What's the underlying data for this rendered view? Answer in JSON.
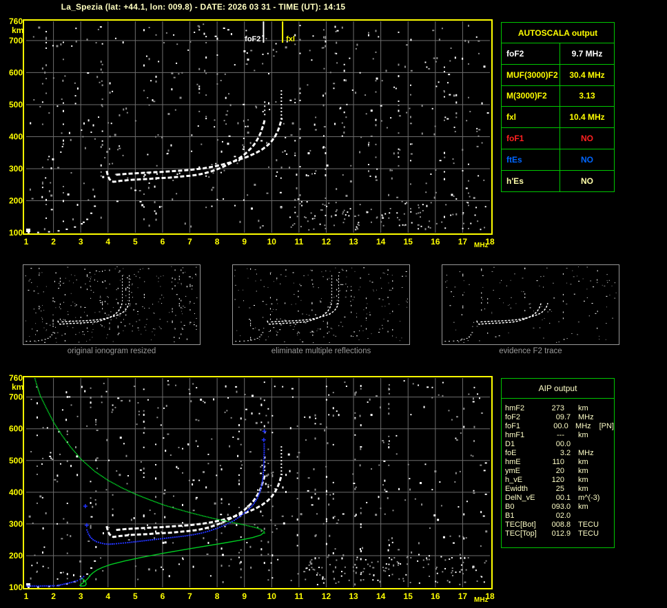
{
  "title": "La_Spezia (lat: +44.1, lon: 009.8) - DATE: 2026 03 31 - TIME (UT): 14:15",
  "colors": {
    "background": "#000000",
    "axis_yellow": "#ffff00",
    "pale_yellow": "#ffffc8",
    "grid_gray": "#6e6e6e",
    "table_border_green": "#00c800",
    "trace_white": "#ffffff",
    "computed_blue": "#2233ff",
    "profile_green": "#00cc22",
    "noise_gray": "#8f8f8f",
    "caption_gray": "#9a9a9a",
    "fof1_red": "#ff2020",
    "ftes_blue": "#0066ff",
    "hes_yellow": "#ffffa8"
  },
  "autoscala_table": {
    "title": "AUTOSCALA output",
    "rows": [
      {
        "label": "foF2",
        "value": "9.7 MHz",
        "color": "#ffffff"
      },
      {
        "label": "MUF(3000)F2",
        "value": "30.4 MHz",
        "color": "#ffff00"
      },
      {
        "label": "M(3000)F2",
        "value": "3.13",
        "color": "#ffff00"
      },
      {
        "label": "fxl",
        "value": "10.4 MHz",
        "color": "#ffff00"
      },
      {
        "label": "foF1",
        "value": "NO",
        "color": "#ff2020"
      },
      {
        "label": "ftEs",
        "value": "NO",
        "color": "#0066ff"
      },
      {
        "label": "h'Es",
        "value": "NO",
        "color": "#ffffa8"
      }
    ]
  },
  "aip_table": {
    "title": "AIP output",
    "rows": [
      {
        "label": "hmF2",
        "value": "273",
        "unit": "km",
        "note": ""
      },
      {
        "label": "foF2",
        "value": "09.7",
        "unit": "MHz",
        "note": ""
      },
      {
        "label": "foF1",
        "value": "00.0",
        "unit": "MHz",
        "note": "[PN]"
      },
      {
        "label": "hmF1",
        "value": "---",
        "unit": "km",
        "note": ""
      },
      {
        "label": "D1",
        "value": "00.0",
        "unit": "",
        "note": ""
      },
      {
        "label": "foE",
        "value": "3.2",
        "unit": "MHz",
        "note": ""
      },
      {
        "label": "hmE",
        "value": "110",
        "unit": "km",
        "note": ""
      },
      {
        "label": "ymE",
        "value": "20",
        "unit": "km",
        "note": ""
      },
      {
        "label": "h_vE",
        "value": "120",
        "unit": "km",
        "note": ""
      },
      {
        "label": "Ewidth",
        "value": "25",
        "unit": "km",
        "note": ""
      },
      {
        "label": "DelN_vE",
        "value": "00.1",
        "unit": "m^(-3)",
        "note": ""
      },
      {
        "label": "B0",
        "value": "093.0",
        "unit": "km",
        "note": ""
      },
      {
        "label": "B1",
        "value": "02.0",
        "unit": "",
        "note": ""
      },
      {
        "label": "TEC[Bot]",
        "value": "008.8",
        "unit": "TECU",
        "note": ""
      },
      {
        "label": "TEC[Top]",
        "value": "012.9",
        "unit": "TECU",
        "note": ""
      }
    ]
  },
  "thumbnails": [
    {
      "caption": "original ionogram resized"
    },
    {
      "caption": "eliminate multiple reflections"
    },
    {
      "caption": "evidence F2 trace"
    }
  ],
  "axes": {
    "x_ticks": [
      1,
      2,
      3,
      4,
      5,
      6,
      7,
      8,
      9,
      10,
      11,
      12,
      13,
      14,
      15,
      16,
      17,
      18
    ],
    "x_unit": "MHz",
    "y_ticks": [
      760,
      700,
      600,
      500,
      400,
      300,
      200,
      100
    ],
    "y_unit": "km",
    "x_range": [
      1,
      18
    ],
    "y_range": [
      100,
      760
    ]
  },
  "chart_data": [
    {
      "name": "measured-ionogram",
      "type": "scatter",
      "xlabel": "MHz",
      "ylabel": "km",
      "xlim": [
        1,
        18
      ],
      "ylim": [
        100,
        760
      ],
      "markers": [
        {
          "label": "foF2",
          "f_mhz": 9.7,
          "color": "#ffffff"
        },
        {
          "label": "fxl",
          "f_mhz": 10.4,
          "color": "#ffff00"
        }
      ],
      "series": [
        {
          "name": "E-region-echo",
          "color": "#ffffff",
          "points": [
            [
              1.05,
              102
            ],
            [
              1.2,
              103
            ],
            [
              1.4,
              103
            ],
            [
              1.6,
              104
            ],
            [
              1.8,
              105
            ],
            [
              2.0,
              106
            ],
            [
              2.15,
              108
            ],
            [
              2.3,
              110
            ],
            [
              2.45,
              113
            ],
            [
              2.6,
              116
            ],
            [
              2.75,
              120
            ],
            [
              2.9,
              125
            ],
            [
              3.0,
              130
            ],
            [
              3.1,
              136
            ],
            [
              3.2,
              144
            ],
            [
              3.28,
              153
            ],
            [
              3.35,
              163
            ],
            [
              3.42,
              174
            ],
            [
              3.48,
              185
            ],
            [
              3.54,
              196
            ]
          ]
        },
        {
          "name": "F-trace-ordinary",
          "color": "#ffffff",
          "points": [
            [
              3.95,
              293
            ],
            [
              3.98,
              283
            ],
            [
              4.02,
              273
            ],
            [
              4.05,
              268
            ],
            [
              4.12,
              261
            ],
            [
              4.2,
              259
            ],
            [
              4.3,
              260
            ],
            [
              4.45,
              262
            ],
            [
              4.6,
              263
            ],
            [
              4.8,
              265
            ],
            [
              5.0,
              266
            ],
            [
              5.25,
              267
            ],
            [
              5.5,
              268
            ],
            [
              5.75,
              270
            ],
            [
              6.0,
              271
            ],
            [
              6.25,
              272
            ],
            [
              6.5,
              274
            ],
            [
              6.75,
              276
            ],
            [
              7.0,
              278
            ],
            [
              7.2,
              280
            ],
            [
              7.4,
              283
            ],
            [
              7.6,
              287
            ],
            [
              7.8,
              292
            ],
            [
              8.0,
              298
            ],
            [
              8.2,
              305
            ],
            [
              8.4,
              313
            ],
            [
              8.6,
              322
            ],
            [
              8.8,
              332
            ],
            [
              9.0,
              344
            ],
            [
              9.15,
              356
            ],
            [
              9.3,
              369
            ],
            [
              9.42,
              383
            ],
            [
              9.52,
              398
            ],
            [
              9.6,
              413
            ],
            [
              9.66,
              428
            ],
            [
              9.71,
              441
            ],
            [
              9.75,
              455
            ]
          ]
        },
        {
          "name": "F-trace-extraordinary",
          "color": "#ffffff",
          "points": [
            [
              4.3,
              281
            ],
            [
              4.7,
              284
            ],
            [
              5.1,
              286
            ],
            [
              5.5,
              288
            ],
            [
              6.0,
              290
            ],
            [
              6.5,
              293
            ],
            [
              7.0,
              296
            ],
            [
              7.5,
              301
            ],
            [
              7.9,
              307
            ],
            [
              8.2,
              313
            ],
            [
              8.5,
              320
            ],
            [
              8.8,
              328
            ],
            [
              9.1,
              337
            ],
            [
              9.4,
              348
            ],
            [
              9.65,
              360
            ],
            [
              9.85,
              373
            ],
            [
              10.0,
              386
            ],
            [
              10.12,
              400
            ],
            [
              10.21,
              415
            ],
            [
              10.28,
              430
            ],
            [
              10.33,
              445
            ],
            [
              10.37,
              458
            ]
          ]
        }
      ]
    },
    {
      "name": "autoscaled-ionogram-with-profile",
      "type": "scatter",
      "xlabel": "MHz",
      "ylabel": "km",
      "xlim": [
        1,
        18
      ],
      "ylim": [
        100,
        760
      ],
      "includes_measured": true,
      "series": [
        {
          "name": "computed-E-trace",
          "color": "#2233ff",
          "points": [
            [
              1.0,
              104
            ],
            [
              1.5,
              104
            ],
            [
              2.0,
              105
            ],
            [
              2.1,
              105
            ],
            [
              2.3,
              109
            ],
            [
              2.5,
              113
            ],
            [
              2.7,
              117
            ],
            [
              2.85,
              121
            ],
            [
              2.95,
              125
            ],
            [
              3.02,
              129
            ],
            [
              3.08,
              134
            ]
          ]
        },
        {
          "name": "computed-F-trace",
          "color": "#2233ff",
          "points": [
            [
              3.2,
              281
            ],
            [
              3.26,
              268
            ],
            [
              3.33,
              258
            ],
            [
              3.43,
              250
            ],
            [
              3.55,
              244
            ],
            [
              3.7,
              240
            ],
            [
              3.85,
              237
            ],
            [
              4.0,
              236
            ],
            [
              4.2,
              237
            ],
            [
              4.45,
              239
            ],
            [
              4.7,
              241
            ],
            [
              5.0,
              244
            ],
            [
              5.3,
              247
            ],
            [
              5.6,
              250
            ],
            [
              5.9,
              253
            ],
            [
              6.2,
              256
            ],
            [
              6.5,
              259
            ],
            [
              6.8,
              262
            ],
            [
              7.1,
              266
            ],
            [
              7.4,
              271
            ],
            [
              7.7,
              278
            ],
            [
              8.0,
              287
            ],
            [
              8.3,
              298
            ],
            [
              8.6,
              311
            ],
            [
              8.85,
              326
            ],
            [
              9.1,
              343
            ],
            [
              9.3,
              361
            ],
            [
              9.45,
              381
            ],
            [
              9.55,
              403
            ],
            [
              9.62,
              426
            ],
            [
              9.66,
              450
            ],
            [
              9.68,
              475
            ],
            [
              9.69,
              500
            ],
            [
              9.7,
              526
            ],
            [
              9.7,
              552
            ]
          ]
        },
        {
          "name": "isolated-marks",
          "color": "#2233ff",
          "points": [
            [
              3.17,
              356
            ],
            [
              3.22,
              296
            ],
            [
              9.71,
              565
            ],
            [
              9.73,
              592
            ]
          ]
        },
        {
          "name": "density-profile-topside",
          "color": "#00cc22",
          "style": "dotted",
          "points": [
            [
              9.72,
              273
            ],
            [
              9.7,
              278
            ],
            [
              9.6,
              284
            ],
            [
              9.4,
              290
            ],
            [
              9.0,
              298
            ],
            [
              8.5,
              307
            ],
            [
              8.0,
              316
            ],
            [
              7.5,
              326
            ],
            [
              7.0,
              337
            ],
            [
              6.5,
              349
            ],
            [
              6.0,
              362
            ],
            [
              5.5,
              378
            ],
            [
              5.0,
              395
            ],
            [
              4.5,
              415
            ],
            [
              4.0,
              438
            ],
            [
              3.5,
              467
            ],
            [
              3.0,
              505
            ],
            [
              2.6,
              545
            ],
            [
              2.3,
              580
            ],
            [
              2.0,
              620
            ],
            [
              1.7,
              670
            ],
            [
              1.5,
              705
            ],
            [
              1.35,
              745
            ],
            [
              1.3,
              760
            ]
          ]
        },
        {
          "name": "density-profile-bottomside",
          "color": "#00cc22",
          "style": "solid",
          "points": [
            [
              9.72,
              273
            ],
            [
              9.6,
              265
            ],
            [
              9.3,
              257
            ],
            [
              8.8,
              248
            ],
            [
              8.2,
              239
            ],
            [
              7.5,
              229
            ],
            [
              6.8,
              219
            ],
            [
              6.0,
              207
            ],
            [
              5.2,
              194
            ],
            [
              4.6,
              183
            ],
            [
              4.1,
              172
            ],
            [
              3.8,
              163
            ],
            [
              3.6,
              155
            ],
            [
              3.45,
              146
            ],
            [
              3.35,
              138
            ],
            [
              3.28,
              130
            ],
            [
              3.22,
              124
            ],
            [
              3.15,
              119
            ],
            [
              3.08,
              114
            ],
            [
              3.0,
              109
            ],
            [
              2.97,
              106
            ],
            [
              3.05,
              104
            ],
            [
              3.15,
              105
            ],
            [
              3.2,
              110
            ],
            [
              3.18,
              118
            ],
            [
              3.1,
              125
            ],
            [
              3.0,
              128
            ]
          ]
        }
      ]
    }
  ]
}
